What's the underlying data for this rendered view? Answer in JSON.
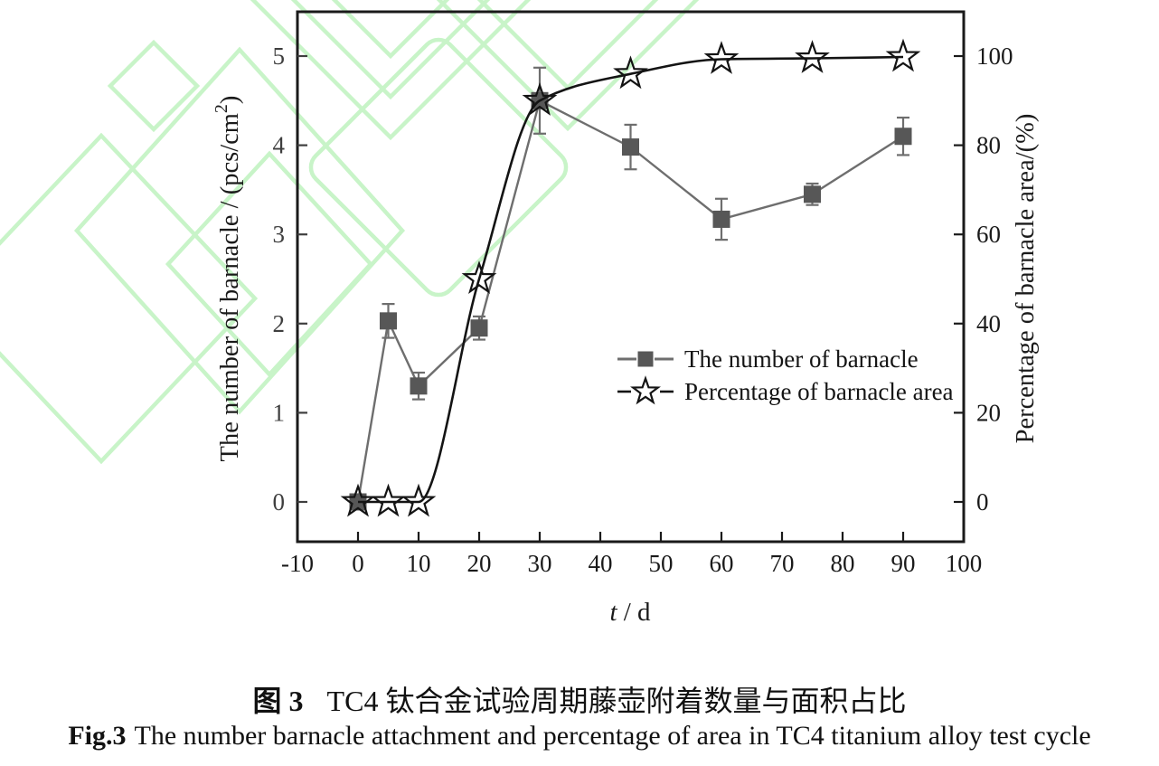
{
  "figure": {
    "caption": {
      "zh_prefix": "图 3",
      "zh_text": "TC4 钛合金试验周期藤壶附着数量与面积占比",
      "en_prefix": "Fig.3",
      "en_text": "The number barnacle attachment and percentage of area in TC4 titanium alloy test cycle"
    }
  },
  "colors": {
    "background": "#ffffff",
    "axis": "#1a1a1a",
    "left_axis_text": "#3f3f3f",
    "series_number_marker": "#575757",
    "series_number_line": "#6e6e6e",
    "series_percent": "#141414",
    "watermark_green": "#c8f4c8"
  },
  "chart_data": {
    "type": "line",
    "x": [
      0,
      5,
      10,
      20,
      30,
      45,
      60,
      75,
      90
    ],
    "series": [
      {
        "name": "The number of  barnacle",
        "axis": "left",
        "marker": "square",
        "line_style": "solid",
        "values": [
          0,
          2.03,
          1.3,
          1.95,
          4.5,
          3.98,
          3.17,
          3.45,
          4.1
        ],
        "errors": [
          0,
          0.19,
          0.15,
          0.13,
          0.37,
          0.25,
          0.23,
          0.12,
          0.21
        ]
      },
      {
        "name": "Percentage of barnacle area",
        "axis": "right",
        "marker": "star",
        "line_style": "smooth",
        "values": [
          0,
          0,
          0,
          50,
          90,
          96,
          99.3,
          99.5,
          99.8
        ],
        "errors": [
          0,
          0,
          0,
          0,
          0,
          0,
          0,
          0,
          0
        ]
      }
    ],
    "xlabel": {
      "italic": "t",
      "rest": " / d"
    },
    "ylabel_left": {
      "main": "The number of  barnacle / (pcs/cm",
      "sup": "2",
      "end": ")"
    },
    "ylabel_right": "Percentage of barnacle area/(%)",
    "x_ticks": [
      -10,
      0,
      10,
      20,
      30,
      40,
      50,
      60,
      70,
      80,
      90,
      100
    ],
    "y_ticks_left": [
      0,
      1,
      2,
      3,
      4,
      5
    ],
    "y_ticks_right": [
      0,
      20,
      40,
      60,
      80,
      100
    ],
    "xlim": [
      -10,
      100
    ],
    "ylim_left": [
      0,
      5
    ],
    "ylim_right": [
      0,
      100
    ],
    "grid": false,
    "legend_position": "inside-middle-right",
    "legend": [
      "The number of  barnacle",
      "Percentage of barnacle area"
    ]
  }
}
